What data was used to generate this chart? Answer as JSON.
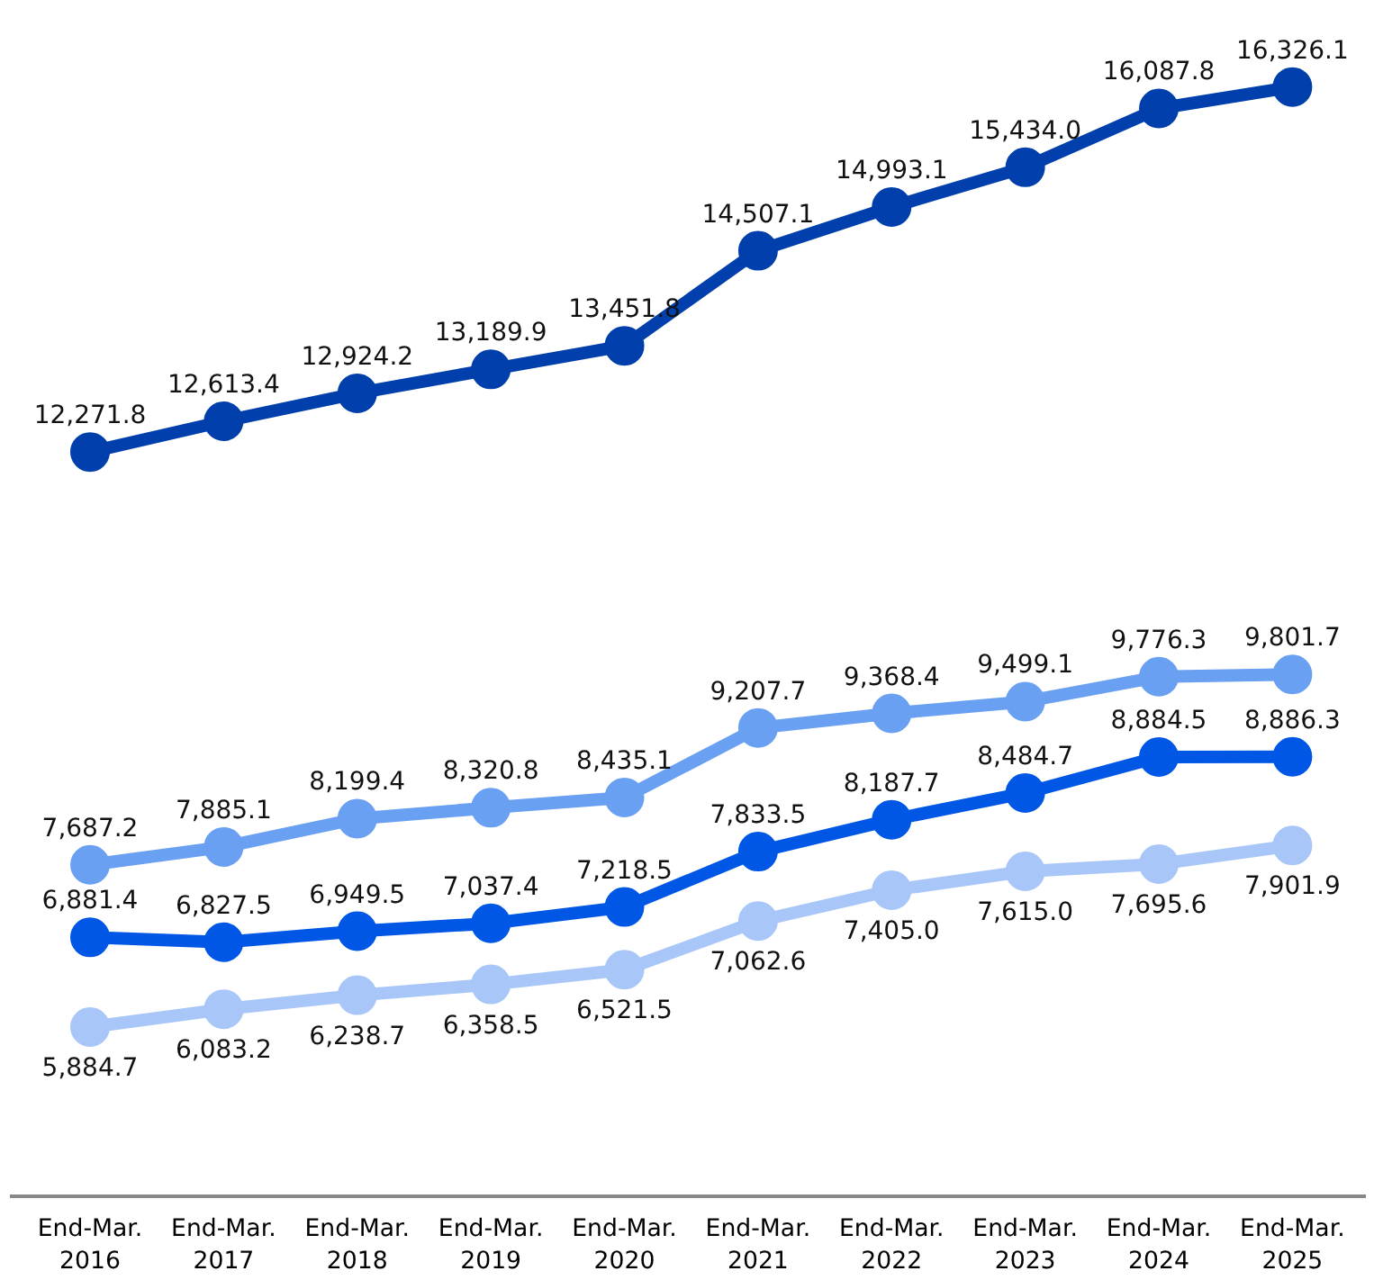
{
  "chart_data": {
    "type": "line",
    "categories": [
      "End-Mar.\n2016",
      "End-Mar.\n2017",
      "End-Mar.\n2018",
      "End-Mar.\n2019",
      "End-Mar.\n2020",
      "End-Mar.\n2021",
      "End-Mar.\n2022",
      "End-Mar.\n2023",
      "End-Mar.\n2024",
      "End-Mar.\n2025"
    ],
    "series": [
      {
        "color": "#003fac",
        "values": [
          12271.8,
          12613.4,
          12924.2,
          13189.9,
          13451.8,
          14507.1,
          14993.1,
          15434.0,
          16087.8,
          16326.1
        ],
        "value_labels": [
          "12,271.8",
          "12,613.4",
          "12,924.2",
          "13,189.9",
          "13,451.8",
          "14,507.1",
          "14,993.1",
          "15,434.0",
          "16,087.8",
          "16,326.1"
        ]
      },
      {
        "color": "#6aa0f2",
        "values": [
          7687.2,
          7885.1,
          8199.4,
          8320.8,
          8435.1,
          9207.7,
          9368.4,
          9499.1,
          9776.3,
          9801.7
        ],
        "value_labels": [
          "7,687.2",
          "7,885.1",
          "8,199.4",
          "8,320.8",
          "8,435.1",
          "9,207.7",
          "9,368.4",
          "9,499.1",
          "9,776.3",
          "9,801.7"
        ]
      },
      {
        "color": "#0057e6",
        "values": [
          6881.4,
          6827.5,
          6949.5,
          7037.4,
          7218.5,
          7833.5,
          8187.7,
          8484.7,
          8884.5,
          8886.3
        ],
        "value_labels": [
          "6,881.4",
          "6,827.5",
          "6,949.5",
          "7,037.4",
          "7,218.5",
          "7,833.5",
          "8,187.7",
          "8,484.7",
          "8,884.5",
          "8,886.3"
        ]
      },
      {
        "color": "#a8c6f8",
        "values": [
          5884.7,
          6083.2,
          6238.7,
          6358.5,
          6521.5,
          7062.6,
          7405.0,
          7615.0,
          7695.6,
          7901.9
        ],
        "value_labels": [
          "5,884.7",
          "6,083.2",
          "6,238.7",
          "6,358.5",
          "6,521.5",
          "7,062.6",
          "7,405.0",
          "7,615.0",
          "7,695.6",
          "7,901.9"
        ]
      }
    ],
    "tick_labels": "x",
    "grid": false,
    "marker": "circle",
    "line_style": "solid"
  }
}
